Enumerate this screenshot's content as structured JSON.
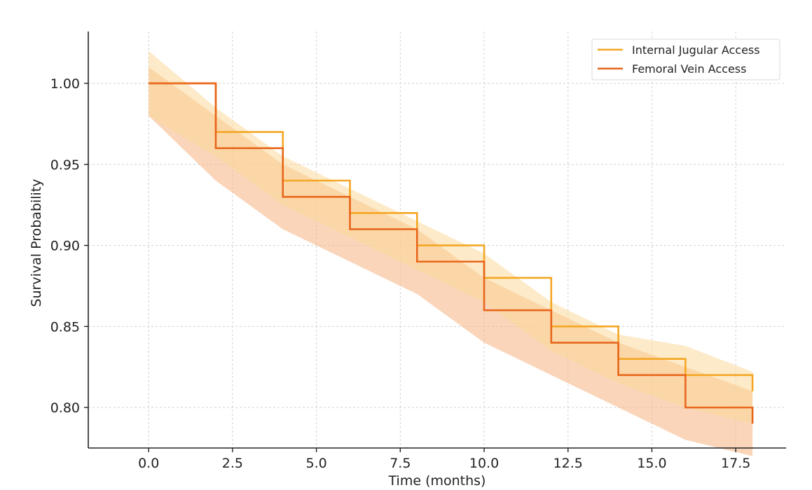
{
  "chart_data": {
    "type": "line",
    "title": "",
    "xlabel": "Time (months)",
    "ylabel": "Survival Probability",
    "xlim": [
      -1.8,
      19.0
    ],
    "ylim": [
      0.775,
      1.032
    ],
    "xticks": [
      0.0,
      2.5,
      5.0,
      7.5,
      10.0,
      12.5,
      15.0,
      17.5
    ],
    "xtick_labels": [
      "0.0",
      "2.5",
      "5.0",
      "7.5",
      "10.0",
      "12.5",
      "15.0",
      "17.5"
    ],
    "yticks": [
      0.8,
      0.85,
      0.9,
      0.95,
      1.0
    ],
    "ytick_labels": [
      "0.80",
      "0.85",
      "0.90",
      "0.95",
      "1.00"
    ],
    "grid": true,
    "legend_position": "top-right",
    "series": [
      {
        "name": "Internal Jugular Access",
        "color": "#f5a623",
        "step": "post",
        "x": [
          0,
          2,
          4,
          6,
          8,
          10,
          12,
          14,
          16,
          18
        ],
        "y": [
          1.0,
          0.97,
          0.94,
          0.92,
          0.9,
          0.88,
          0.85,
          0.83,
          0.82,
          0.81
        ],
        "ci_color": "#fbd89a",
        "ci_x": [
          0,
          2,
          4,
          6,
          8,
          10,
          12,
          14,
          16,
          18
        ],
        "ci_lower": [
          0.98,
          0.955,
          0.925,
          0.905,
          0.885,
          0.865,
          0.835,
          0.815,
          0.8,
          0.79
        ],
        "ci_upper": [
          1.02,
          0.985,
          0.955,
          0.935,
          0.915,
          0.895,
          0.865,
          0.845,
          0.838,
          0.822
        ]
      },
      {
        "name": "Femoral Vein Access",
        "color": "#e8661c",
        "step": "post",
        "x": [
          0,
          2,
          4,
          6,
          8,
          10,
          12,
          14,
          16,
          18
        ],
        "y": [
          1.0,
          0.96,
          0.93,
          0.91,
          0.89,
          0.86,
          0.84,
          0.82,
          0.8,
          0.79
        ],
        "ci_color": "#f7b98a",
        "ci_x": [
          0,
          2,
          4,
          6,
          8,
          10,
          12,
          14,
          16,
          18
        ],
        "ci_lower": [
          0.98,
          0.94,
          0.91,
          0.89,
          0.87,
          0.84,
          0.82,
          0.8,
          0.78,
          0.77
        ],
        "ci_upper": [
          1.01,
          0.98,
          0.95,
          0.93,
          0.91,
          0.88,
          0.86,
          0.84,
          0.825,
          0.81
        ]
      }
    ]
  }
}
